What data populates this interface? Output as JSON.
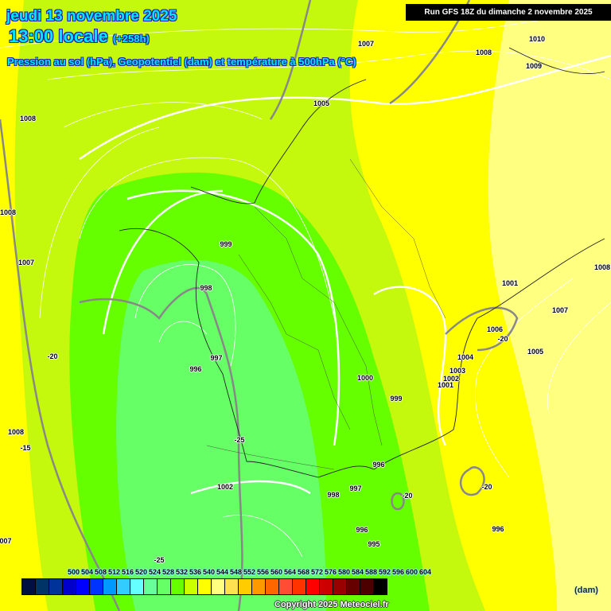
{
  "header": {
    "date": "jeudi 13 novembre 2025",
    "time": "13:00 locale",
    "lead": "(+258h)",
    "subtitle": "Pression au sol (hPa), Geopotentiel (dam) et température à 500hPa (°C)",
    "run": "Run GFS 18Z du dimanche 2 novembre 2025"
  },
  "map_labels": [
    "1007",
    "1010",
    "1008",
    "1009",
    "1005",
    "1008",
    "1008",
    "999",
    "1007",
    "998",
    "1001",
    "1008",
    "1007",
    "1006",
    "-20",
    "-20",
    "997",
    "996",
    "1005",
    "1004",
    "1003",
    "1002",
    "1001",
    "1000",
    "999",
    "1008",
    "-15",
    "-25",
    "996",
    "997",
    "1002",
    "998",
    "-20",
    "-20",
    "996",
    "995",
    "996",
    "-25",
    "007"
  ],
  "legend": {
    "values": [
      "500",
      "504",
      "508",
      "512",
      "516",
      "520",
      "524",
      "528",
      "532",
      "536",
      "540",
      "544",
      "548",
      "552",
      "556",
      "560",
      "564",
      "568",
      "572",
      "576",
      "580",
      "584",
      "588",
      "592",
      "596",
      "600",
      "604"
    ],
    "colors": [
      "#001040",
      "#003366",
      "#003399",
      "#0000cc",
      "#0000ff",
      "#0033ff",
      "#0099ff",
      "#33ccff",
      "#66ffff",
      "#66ff99",
      "#66ff66",
      "#66ff00",
      "#ccff00",
      "#ffff00",
      "#ffff80",
      "#ffe050",
      "#ffcc00",
      "#ff9900",
      "#ff6600",
      "#ff4d33",
      "#ff3300",
      "#ff0000",
      "#cc0000",
      "#990000",
      "#660000",
      "#4d0000",
      "#000000"
    ],
    "unit": "(dam)"
  },
  "copyright": "Copyright 2025 Meteociel.fr"
}
